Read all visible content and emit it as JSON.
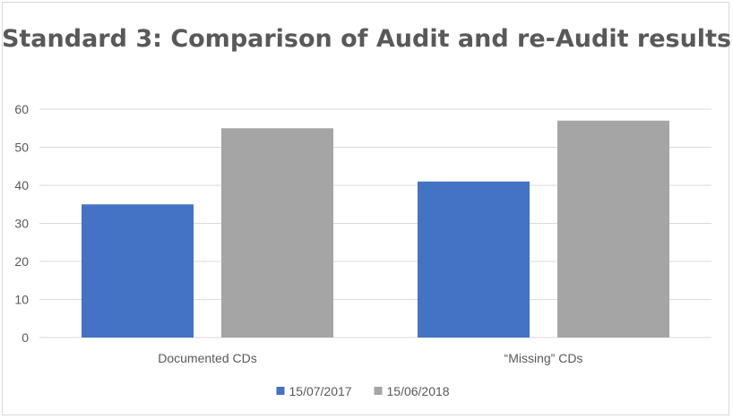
{
  "chart_data": {
    "type": "bar",
    "title": "Standard 3: Comparison of Audit and re-Audit results",
    "categories": [
      "Documented CDs",
      "“Missing” CDs"
    ],
    "series": [
      {
        "name": "15/07/2017",
        "color": "#4472c4",
        "values": [
          35,
          41
        ]
      },
      {
        "name": "15/06/2018",
        "color": "#a5a5a5",
        "values": [
          55,
          57
        ]
      }
    ],
    "xlabel": "",
    "ylabel": "",
    "ylim": [
      0,
      60
    ],
    "yticks": [
      0,
      10,
      20,
      30,
      40,
      50,
      60
    ],
    "grid": true,
    "legend_position": "bottom"
  }
}
